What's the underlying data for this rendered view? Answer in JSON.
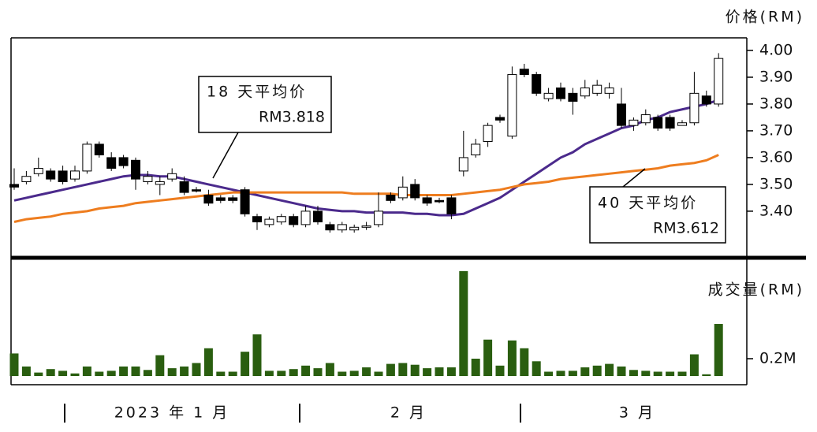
{
  "chart_data": [
    {
      "type": "candlestick",
      "y_axis_label": "价格(RM)",
      "categories": [
        null,
        null,
        null,
        null,
        null,
        null,
        null,
        null,
        null,
        null,
        null,
        null,
        null,
        null,
        null,
        null,
        null,
        null,
        null,
        null,
        null,
        null,
        null,
        null,
        null,
        null,
        null,
        null,
        null,
        null,
        null,
        null,
        null,
        null,
        null,
        null,
        null,
        null,
        null,
        null,
        null,
        null,
        null,
        null,
        null,
        null,
        null,
        null,
        null,
        null,
        null,
        null,
        null,
        null,
        null,
        null,
        null,
        null,
        null
      ],
      "open": [
        3.5,
        3.51,
        3.54,
        3.55,
        3.55,
        3.52,
        3.55,
        3.65,
        3.6,
        3.6,
        3.59,
        3.51,
        3.5,
        3.52,
        3.51,
        3.48,
        3.46,
        3.45,
        3.45,
        3.48,
        3.38,
        3.35,
        3.36,
        3.38,
        3.35,
        3.4,
        3.35,
        3.33,
        3.33,
        3.34,
        3.35,
        3.46,
        3.45,
        3.5,
        3.45,
        3.44,
        3.45,
        3.55,
        3.61,
        3.66,
        3.75,
        3.68,
        3.93,
        3.91,
        3.82,
        3.86,
        3.84,
        3.83,
        3.84,
        3.84,
        3.8,
        3.72,
        3.73,
        3.75,
        3.75,
        3.72,
        3.73,
        3.83,
        3.8
      ],
      "high": [
        3.56,
        3.55,
        3.6,
        3.56,
        3.57,
        3.57,
        3.66,
        3.66,
        3.62,
        3.61,
        3.6,
        3.55,
        3.53,
        3.56,
        3.53,
        3.49,
        3.48,
        3.46,
        3.46,
        3.49,
        3.39,
        3.38,
        3.39,
        3.39,
        3.42,
        3.42,
        3.36,
        3.36,
        3.35,
        3.36,
        3.47,
        3.47,
        3.53,
        3.52,
        3.46,
        3.45,
        3.46,
        3.7,
        3.67,
        3.73,
        3.76,
        3.94,
        3.95,
        3.92,
        3.86,
        3.88,
        3.86,
        3.89,
        3.89,
        3.88,
        3.86,
        3.75,
        3.78,
        3.76,
        3.76,
        3.74,
        3.92,
        3.85,
        3.99
      ],
      "low": [
        3.48,
        3.5,
        3.53,
        3.51,
        3.5,
        3.51,
        3.54,
        3.6,
        3.55,
        3.56,
        3.48,
        3.5,
        3.46,
        3.51,
        3.46,
        3.47,
        3.42,
        3.43,
        3.43,
        3.38,
        3.33,
        3.34,
        3.35,
        3.34,
        3.34,
        3.35,
        3.32,
        3.32,
        3.32,
        3.33,
        3.34,
        3.43,
        3.44,
        3.44,
        3.42,
        3.43,
        3.37,
        3.53,
        3.6,
        3.64,
        3.73,
        3.67,
        3.9,
        3.83,
        3.81,
        3.81,
        3.76,
        3.82,
        3.83,
        3.82,
        3.71,
        3.7,
        3.72,
        3.7,
        3.7,
        3.72,
        3.72,
        3.79,
        3.79
      ],
      "close": [
        3.49,
        3.53,
        3.56,
        3.52,
        3.51,
        3.55,
        3.65,
        3.61,
        3.56,
        3.57,
        3.52,
        3.53,
        3.51,
        3.54,
        3.47,
        3.475,
        3.43,
        3.44,
        3.44,
        3.39,
        3.36,
        3.37,
        3.38,
        3.35,
        3.4,
        3.36,
        3.33,
        3.35,
        3.34,
        3.345,
        3.4,
        3.44,
        3.49,
        3.45,
        3.43,
        3.435,
        3.39,
        3.6,
        3.65,
        3.72,
        3.74,
        3.91,
        3.91,
        3.84,
        3.84,
        3.82,
        3.81,
        3.86,
        3.87,
        3.86,
        3.72,
        3.74,
        3.76,
        3.71,
        3.71,
        3.73,
        3.84,
        3.8,
        3.97
      ],
      "up_color": "#ffffff",
      "down_color": "#000000",
      "series": [
        {
          "name": "18 天平均价",
          "value_label": "RM3.818",
          "color": "#4b2a8c",
          "values": [
            3.44,
            3.45,
            3.46,
            3.47,
            3.48,
            3.49,
            3.5,
            3.51,
            3.52,
            3.53,
            3.535,
            3.535,
            3.53,
            3.53,
            3.52,
            3.51,
            3.5,
            3.49,
            3.48,
            3.47,
            3.46,
            3.45,
            3.44,
            3.43,
            3.42,
            3.41,
            3.405,
            3.4,
            3.4,
            3.395,
            3.395,
            3.395,
            3.395,
            3.39,
            3.39,
            3.385,
            3.385,
            3.39,
            3.41,
            3.43,
            3.45,
            3.48,
            3.51,
            3.54,
            3.57,
            3.6,
            3.62,
            3.65,
            3.67,
            3.69,
            3.71,
            3.72,
            3.74,
            3.75,
            3.77,
            3.78,
            3.79,
            3.8,
            3.815
          ]
        },
        {
          "name": "40 天平均价",
          "value_label": "RM3.612",
          "color": "#ee7d1f",
          "values": [
            3.36,
            3.37,
            3.375,
            3.38,
            3.39,
            3.395,
            3.4,
            3.41,
            3.415,
            3.42,
            3.43,
            3.435,
            3.44,
            3.445,
            3.45,
            3.455,
            3.46,
            3.465,
            3.47,
            3.47,
            3.47,
            3.47,
            3.47,
            3.47,
            3.47,
            3.47,
            3.47,
            3.47,
            3.465,
            3.465,
            3.465,
            3.465,
            3.46,
            3.46,
            3.46,
            3.46,
            3.46,
            3.465,
            3.47,
            3.475,
            3.48,
            3.49,
            3.5,
            3.505,
            3.51,
            3.52,
            3.525,
            3.53,
            3.535,
            3.54,
            3.545,
            3.55,
            3.555,
            3.56,
            3.57,
            3.575,
            3.58,
            3.59,
            3.61
          ]
        }
      ],
      "ylim": [
        3.232,
        4.047
      ],
      "yticks": [
        {
          "value": 3.4,
          "label": "3.40"
        },
        {
          "value": 3.5,
          "label": "3.50"
        },
        {
          "value": 3.6,
          "label": "3.60"
        },
        {
          "value": 3.7,
          "label": "3.70"
        },
        {
          "value": 3.8,
          "label": "3.80"
        },
        {
          "value": 3.9,
          "label": "3.90"
        },
        {
          "value": 4.0,
          "label": "4.00"
        }
      ]
    },
    {
      "type": "bar",
      "y_axis_label": "成交量(RM)",
      "color": "#2a5e10",
      "values": [
        0.26,
        0.11,
        0.04,
        0.08,
        0.06,
        0.03,
        0.11,
        0.05,
        0.06,
        0.11,
        0.11,
        0.07,
        0.24,
        0.09,
        0.11,
        0.15,
        0.32,
        0.05,
        0.05,
        0.28,
        0.48,
        0.06,
        0.06,
        0.08,
        0.12,
        0.09,
        0.15,
        0.05,
        0.06,
        0.1,
        0.05,
        0.14,
        0.15,
        0.13,
        0.09,
        0.1,
        0.1,
        1.21,
        0.2,
        0.42,
        0.12,
        0.41,
        0.32,
        0.17,
        0.05,
        0.06,
        0.06,
        0.1,
        0.12,
        0.14,
        0.11,
        0.07,
        0.06,
        0.05,
        0.05,
        0.05,
        0.25,
        0.02,
        0.6
      ],
      "ylim": [
        -0.1,
        1.336
      ],
      "yticks": [
        {
          "value": 0.2,
          "label": "0.2M"
        }
      ],
      "month_labels": [
        "2023 年 1 月",
        "2 月",
        "3 月"
      ]
    }
  ]
}
